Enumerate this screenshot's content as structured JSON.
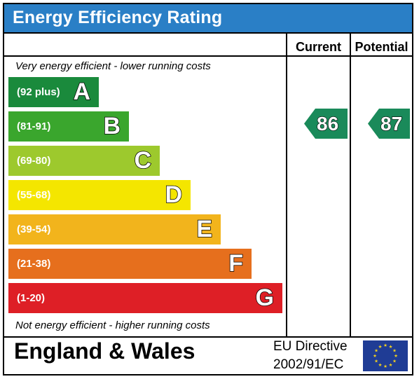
{
  "title": "Energy Efficiency Rating",
  "columns": {
    "current": "Current",
    "potential": "Potential"
  },
  "notes": {
    "top": "Very energy efficient - lower running costs",
    "bottom": "Not energy efficient - higher running costs"
  },
  "bands": [
    {
      "range": "(92 plus)",
      "letter": "A",
      "color": "#1a8a3c"
    },
    {
      "range": "(81-91)",
      "letter": "B",
      "color": "#3aa62d"
    },
    {
      "range": "(69-80)",
      "letter": "C",
      "color": "#9dc92d"
    },
    {
      "range": "(55-68)",
      "letter": "D",
      "color": "#f4e600"
    },
    {
      "range": "(39-54)",
      "letter": "E",
      "color": "#f2b41c"
    },
    {
      "range": "(21-38)",
      "letter": "F",
      "color": "#e66f1d"
    },
    {
      "range": "(1-20)",
      "letter": "G",
      "color": "#de1f26"
    }
  ],
  "ratings": {
    "current": {
      "value": "86",
      "band": "B",
      "color": "#1a8a5a"
    },
    "potential": {
      "value": "87",
      "band": "B",
      "color": "#1a8a5a"
    }
  },
  "footer": {
    "region": "England & Wales",
    "directive_line1": "EU Directive",
    "directive_line2": "2002/91/EC"
  },
  "flag": {
    "name": "eu-flag-icon",
    "background": "#1f3c95",
    "stars": "#f4d21e"
  }
}
